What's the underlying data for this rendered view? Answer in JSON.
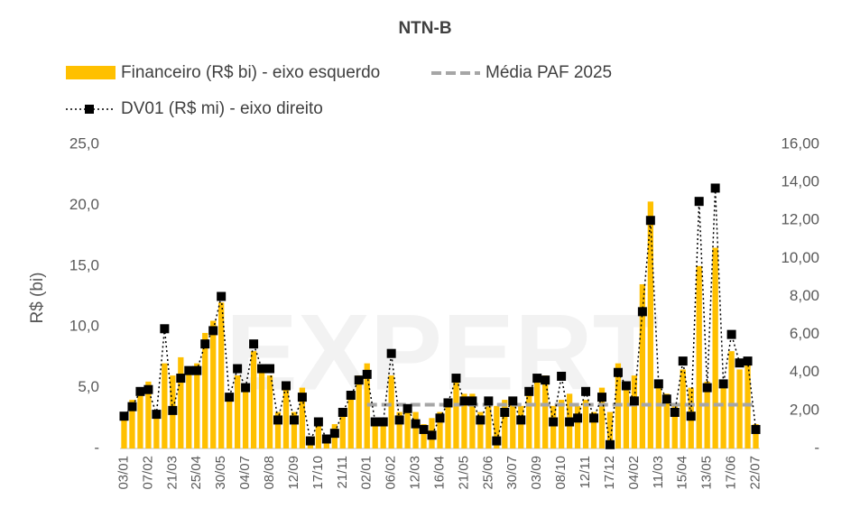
{
  "chart_data": {
    "type": "bar",
    "title": "NTN-B",
    "watermark": "EXPERT",
    "y_label": "R$ (bi)",
    "categories": [
      "03/01",
      null,
      null,
      "07/02",
      null,
      null,
      "21/03",
      null,
      null,
      "25/04",
      null,
      null,
      "30/05",
      null,
      null,
      "04/07",
      null,
      null,
      "08/08",
      null,
      null,
      "12/09",
      null,
      null,
      "17/10",
      null,
      null,
      "21/11",
      null,
      null,
      "02/01",
      null,
      null,
      "06/02",
      null,
      null,
      "12/03",
      null,
      null,
      "16/04",
      null,
      null,
      "21/05",
      null,
      null,
      "25/06",
      null,
      null,
      "30/07",
      null,
      null,
      "03/09",
      null,
      null,
      "08/10",
      null,
      null,
      "12/11",
      null,
      null,
      "17/12",
      null,
      null,
      "04/02",
      null,
      null,
      "11/03",
      null,
      null,
      "15/04",
      null,
      null,
      "13/05",
      null,
      null,
      "17/06",
      null,
      null,
      "22/07"
    ],
    "series": [
      {
        "name": "Financeiro (R$ bi) - eixo esquerdo",
        "kind": "bar",
        "color": "#ffc000",
        "values": [
          3.0,
          4.0,
          4.5,
          5.5,
          2.5,
          7.0,
          6.0,
          7.5,
          6.5,
          7.0,
          9.5,
          10.5,
          12.0,
          4.5,
          6.0,
          5.0,
          8.0,
          6.5,
          6.0,
          3.0,
          5.0,
          3.0,
          5.0,
          1.0,
          2.0,
          1.0,
          2.0,
          3.0,
          4.5,
          6.0,
          7.0,
          2.5,
          2.5,
          6.0,
          3.0,
          3.5,
          3.0,
          2.0,
          2.5,
          3.0,
          4.0,
          6.0,
          4.5,
          4.5,
          3.0,
          4.0,
          3.5,
          4.0,
          4.0,
          3.5,
          4.5,
          5.5,
          6.0,
          3.5,
          4.0,
          4.5,
          3.5,
          4.0,
          3.0,
          5.0,
          3.0,
          7.0,
          5.5,
          6.0,
          13.5,
          20.3,
          5.5,
          4.5,
          3.5,
          6.5,
          5.0,
          15.0,
          5.5,
          16.5,
          5.0,
          8.0,
          6.5,
          7.5,
          2.0
        ]
      },
      {
        "name": "Média PAF 2025",
        "kind": "line",
        "style": "dashed",
        "color": "#a6a6a6",
        "values": [
          null,
          null,
          null,
          null,
          null,
          null,
          null,
          null,
          null,
          null,
          null,
          null,
          null,
          null,
          null,
          null,
          null,
          null,
          null,
          null,
          null,
          null,
          null,
          null,
          null,
          null,
          null,
          null,
          null,
          null,
          3.6,
          3.6,
          3.6,
          3.6,
          3.6,
          3.6,
          3.6,
          3.6,
          3.6,
          3.6,
          3.6,
          3.6,
          3.6,
          3.6,
          3.6,
          3.6,
          3.6,
          3.6,
          3.6,
          3.6,
          3.6,
          3.6,
          3.6,
          3.6,
          3.6,
          3.6,
          3.6,
          3.6,
          3.6,
          3.6,
          3.6,
          3.6,
          3.6,
          3.6,
          3.6,
          3.6,
          3.6,
          3.6,
          3.6,
          3.6,
          3.6,
          3.6,
          3.6,
          3.6,
          3.6,
          3.6,
          3.6,
          3.6,
          3.6
        ]
      },
      {
        "name": "DV01 (R$ mi) - eixo direito",
        "kind": "line",
        "style": "dotted",
        "axis": "y2",
        "color": "#000000",
        "values": [
          1.7,
          2.2,
          3.0,
          3.1,
          1.8,
          6.3,
          2.0,
          3.7,
          4.1,
          4.1,
          5.5,
          6.2,
          8.0,
          2.7,
          4.2,
          3.2,
          5.5,
          4.2,
          4.2,
          1.5,
          3.3,
          1.5,
          2.7,
          0.4,
          1.4,
          0.5,
          0.8,
          1.9,
          2.8,
          3.6,
          3.9,
          1.4,
          1.4,
          5.0,
          1.5,
          2.1,
          1.3,
          1.0,
          0.7,
          1.6,
          2.4,
          3.7,
          2.5,
          2.5,
          1.5,
          2.5,
          0.4,
          1.9,
          2.5,
          1.5,
          3.0,
          3.7,
          3.6,
          1.4,
          3.8,
          1.4,
          1.6,
          3.0,
          1.6,
          2.7,
          0.2,
          4.0,
          3.3,
          2.5,
          7.2,
          12.0,
          3.4,
          2.6,
          1.9,
          4.6,
          1.7,
          13.0,
          3.2,
          13.7,
          3.4,
          6.0,
          4.5,
          4.6,
          1.0
        ]
      }
    ],
    "ylim": [
      0,
      25
    ],
    "yticks": [
      {
        "value": 0,
        "label": "-"
      },
      {
        "value": 5,
        "label": "5,0"
      },
      {
        "value": 10,
        "label": "10,0"
      },
      {
        "value": 15,
        "label": "15,0"
      },
      {
        "value": 20,
        "label": "20,0"
      },
      {
        "value": 25,
        "label": "25,0"
      }
    ],
    "y2lim": [
      0,
      16
    ],
    "y2ticks": [
      {
        "value": 0,
        "label": "-"
      },
      {
        "value": 2,
        "label": "2,00"
      },
      {
        "value": 4,
        "label": "4,00"
      },
      {
        "value": 6,
        "label": "6,00"
      },
      {
        "value": 8,
        "label": "8,00"
      },
      {
        "value": 10,
        "label": "10,00"
      },
      {
        "value": 12,
        "label": "12,00"
      },
      {
        "value": 14,
        "label": "14,00"
      },
      {
        "value": 16,
        "label": "16,00"
      }
    ],
    "grid": false
  }
}
